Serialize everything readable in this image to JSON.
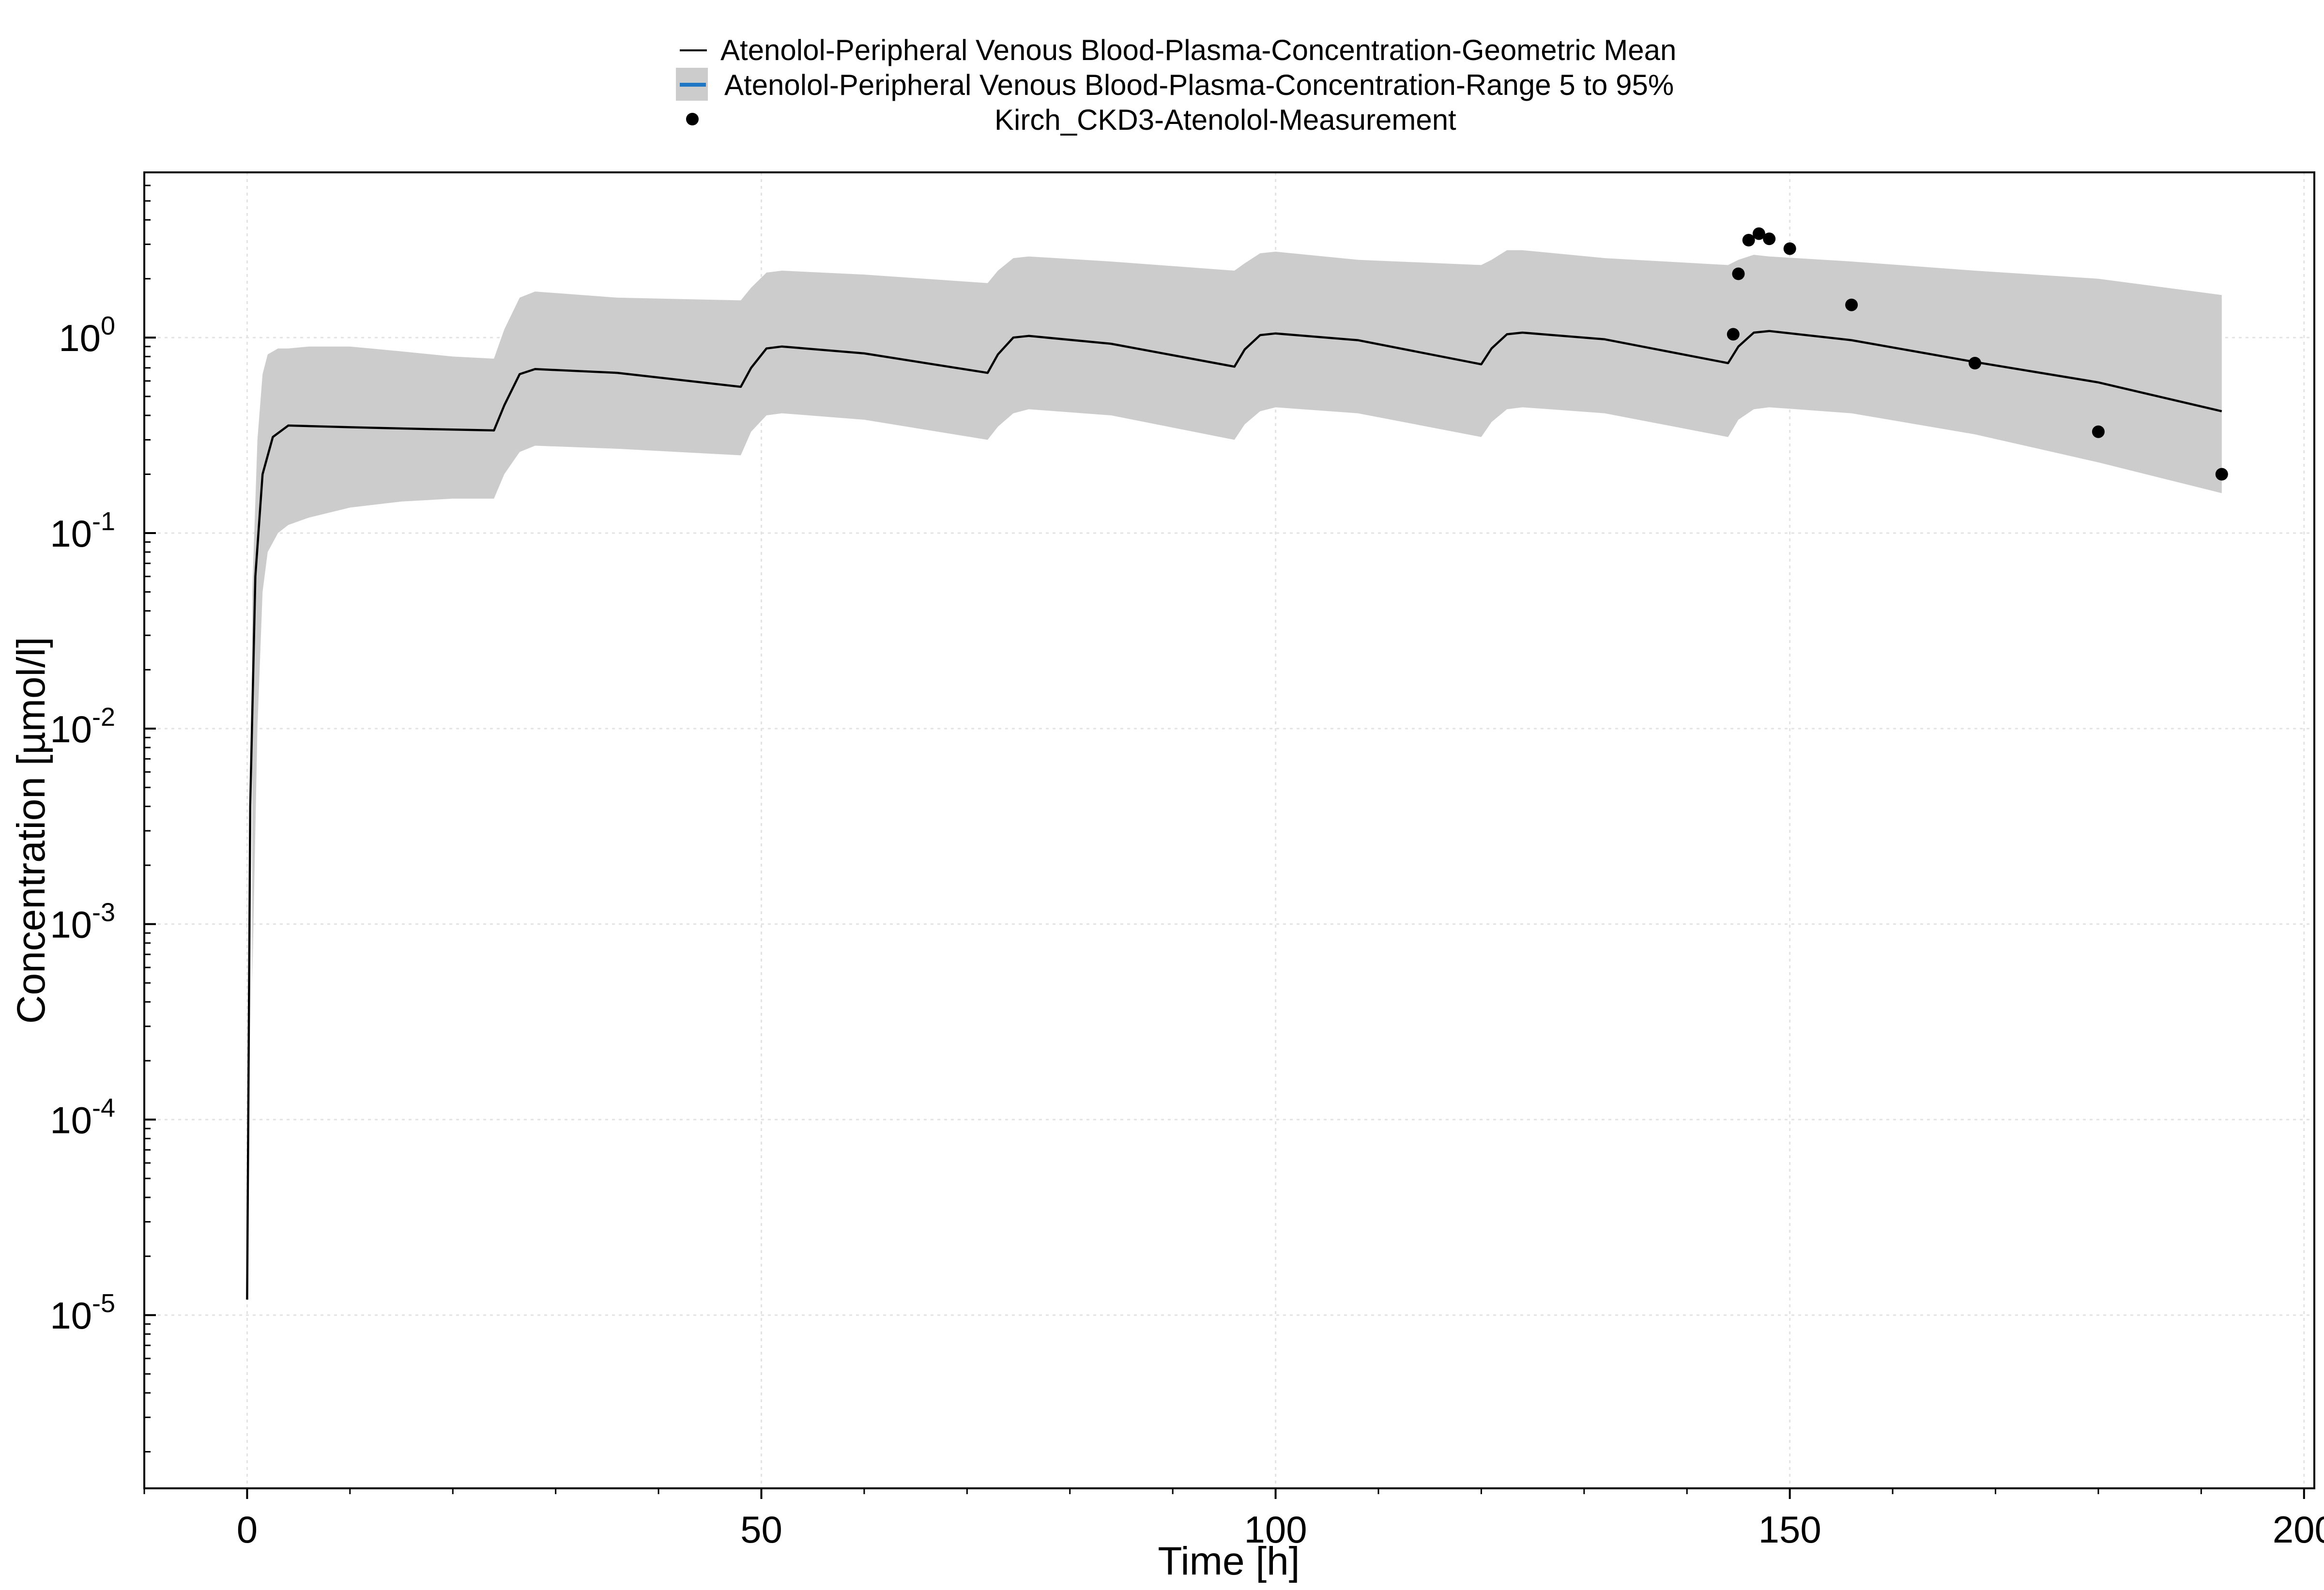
{
  "chart_data": {
    "type": "line",
    "xlabel": "Time [h]",
    "ylabel": "Concentration [µmol/l]",
    "xlim": [
      -10,
      201
    ],
    "ylim": [
      1.3e-06,
      7
    ],
    "y_scale": "log",
    "grid": true,
    "legend_position": "top-center",
    "x_ticks": [
      0,
      50,
      100,
      150,
      200
    ],
    "x_tick_labels": [
      "0",
      "50",
      "100",
      "150",
      "200"
    ],
    "y_ticks": [
      {
        "value": 1,
        "base": "10",
        "exp": "0"
      },
      {
        "value": 0.1,
        "base": "10",
        "exp": "-1"
      },
      {
        "value": 0.01,
        "base": "10",
        "exp": "-2"
      },
      {
        "value": 0.001,
        "base": "10",
        "exp": "-3"
      },
      {
        "value": 0.0001,
        "base": "10",
        "exp": "-4"
      },
      {
        "value": 1e-05,
        "base": "10",
        "exp": "-5"
      }
    ],
    "legend": [
      {
        "label": "Atenolol-Peripheral Venous Blood-Plasma-Concentration-Geometric Mean",
        "symbol": "line",
        "color": "#000000"
      },
      {
        "label": "Atenolol-Peripheral Venous Blood-Plasma-Concentration-Range 5 to 95%",
        "symbol": "band",
        "color": "#cccccc",
        "line_color": "#1f77c4"
      },
      {
        "label": "Kirch_CKD3-Atenolol-Measurement",
        "symbol": "dot",
        "color": "#000000"
      }
    ],
    "series": [
      {
        "name": "Atenolol-Peripheral Venous Blood-Plasma-Concentration-Geometric Mean",
        "type": "line",
        "color": "#000000",
        "x": [
          0,
          0.3,
          0.8,
          1.5,
          2.5,
          4,
          10,
          18,
          24,
          25,
          26.5,
          28,
          36,
          48,
          49,
          50.5,
          52,
          60,
          72,
          73,
          74.5,
          76,
          84,
          96,
          97,
          98.5,
          100,
          108,
          120,
          121,
          122.5,
          124,
          132,
          144,
          145,
          146.5,
          148,
          156,
          168,
          180,
          192
        ],
        "y": [
          1.2e-05,
          0.004,
          0.06,
          0.2,
          0.31,
          0.355,
          0.348,
          0.34,
          0.335,
          0.45,
          0.65,
          0.69,
          0.66,
          0.56,
          0.7,
          0.88,
          0.9,
          0.83,
          0.66,
          0.82,
          1.0,
          1.02,
          0.93,
          0.71,
          0.87,
          1.03,
          1.05,
          0.97,
          0.73,
          0.88,
          1.04,
          1.06,
          0.98,
          0.74,
          0.9,
          1.06,
          1.08,
          0.97,
          0.75,
          0.59,
          0.42
        ]
      },
      {
        "name": "Atenolol-Peripheral Venous Blood-Plasma-Concentration-Range 5 to 95%",
        "type": "band",
        "color": "#cccccc",
        "x": [
          0.5,
          1,
          1.5,
          2,
          3,
          4,
          6,
          10,
          15,
          20,
          24,
          25,
          26.5,
          28,
          36,
          48,
          49,
          50.5,
          52,
          60,
          72,
          73,
          74.5,
          76,
          84,
          96,
          97,
          98.5,
          100,
          108,
          120,
          121,
          122.5,
          124,
          132,
          144,
          145,
          146.5,
          148,
          156,
          168,
          180,
          192
        ],
        "lower": [
          0.0005,
          0.01,
          0.05,
          0.08,
          0.1,
          0.11,
          0.12,
          0.135,
          0.145,
          0.15,
          0.15,
          0.2,
          0.26,
          0.28,
          0.27,
          0.25,
          0.33,
          0.4,
          0.41,
          0.38,
          0.3,
          0.35,
          0.41,
          0.43,
          0.4,
          0.3,
          0.36,
          0.42,
          0.44,
          0.41,
          0.31,
          0.37,
          0.43,
          0.44,
          0.41,
          0.31,
          0.38,
          0.43,
          0.44,
          0.41,
          0.32,
          0.23,
          0.16
        ],
        "upper": [
          0.05,
          0.3,
          0.65,
          0.82,
          0.88,
          0.88,
          0.9,
          0.9,
          0.85,
          0.8,
          0.78,
          1.1,
          1.6,
          1.72,
          1.6,
          1.55,
          1.8,
          2.15,
          2.2,
          2.1,
          1.9,
          2.2,
          2.55,
          2.6,
          2.45,
          2.2,
          2.4,
          2.7,
          2.75,
          2.5,
          2.35,
          2.5,
          2.8,
          2.8,
          2.55,
          2.35,
          2.5,
          2.65,
          2.6,
          2.45,
          2.2,
          2.0,
          1.65
        ]
      },
      {
        "name": "Kirch_CKD3-Atenolol-Measurement",
        "type": "scatter",
        "color": "#000000",
        "x": [
          144.5,
          145,
          146,
          147,
          148,
          150,
          156,
          168,
          180,
          192
        ],
        "y": [
          1.04,
          2.12,
          3.15,
          3.4,
          3.2,
          2.85,
          1.47,
          0.74,
          0.33,
          0.2
        ]
      }
    ]
  }
}
